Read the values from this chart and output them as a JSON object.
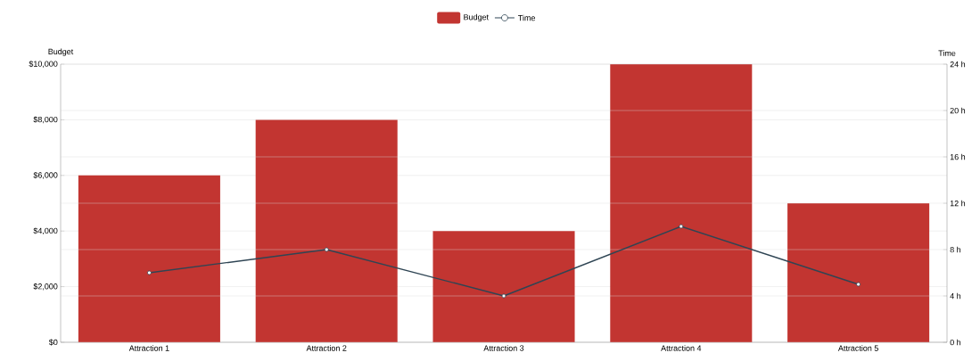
{
  "chart_data": {
    "type": "bar",
    "categories": [
      "Attraction 1",
      "Attraction 2",
      "Attraction 3",
      "Attraction 4",
      "Attraction 5"
    ],
    "series": [
      {
        "name": "Budget",
        "color": "#c23531",
        "values": [
          6000,
          8000,
          4000,
          10000,
          5000
        ]
      },
      {
        "name": "Time",
        "type": "line",
        "axis": "y2",
        "color": "#2f4554",
        "values": [
          6,
          8,
          4,
          10,
          5
        ]
      }
    ],
    "ylabel": "Budget",
    "y2label": "Time",
    "ylim": [
      0,
      10000
    ],
    "yticks": [
      {
        "value": 0,
        "label": "$0"
      },
      {
        "value": 2000,
        "label": "$2,000"
      },
      {
        "value": 4000,
        "label": "$4,000"
      },
      {
        "value": 6000,
        "label": "$6,000"
      },
      {
        "value": 8000,
        "label": "$8,000"
      },
      {
        "value": 10000,
        "label": "$10,000"
      }
    ],
    "y2lim": [
      0,
      24
    ],
    "y2ticks": [
      {
        "value": 0,
        "label": "0 h"
      },
      {
        "value": 4,
        "label": "4 h"
      },
      {
        "value": 8,
        "label": "8 h"
      },
      {
        "value": 12,
        "label": "12 h"
      },
      {
        "value": 16,
        "label": "16 h"
      },
      {
        "value": 20,
        "label": "20 h"
      },
      {
        "value": 24,
        "label": "24 h"
      }
    ],
    "grid": "y",
    "legend": "top",
    "marker": "circle",
    "line_style": "solid"
  }
}
